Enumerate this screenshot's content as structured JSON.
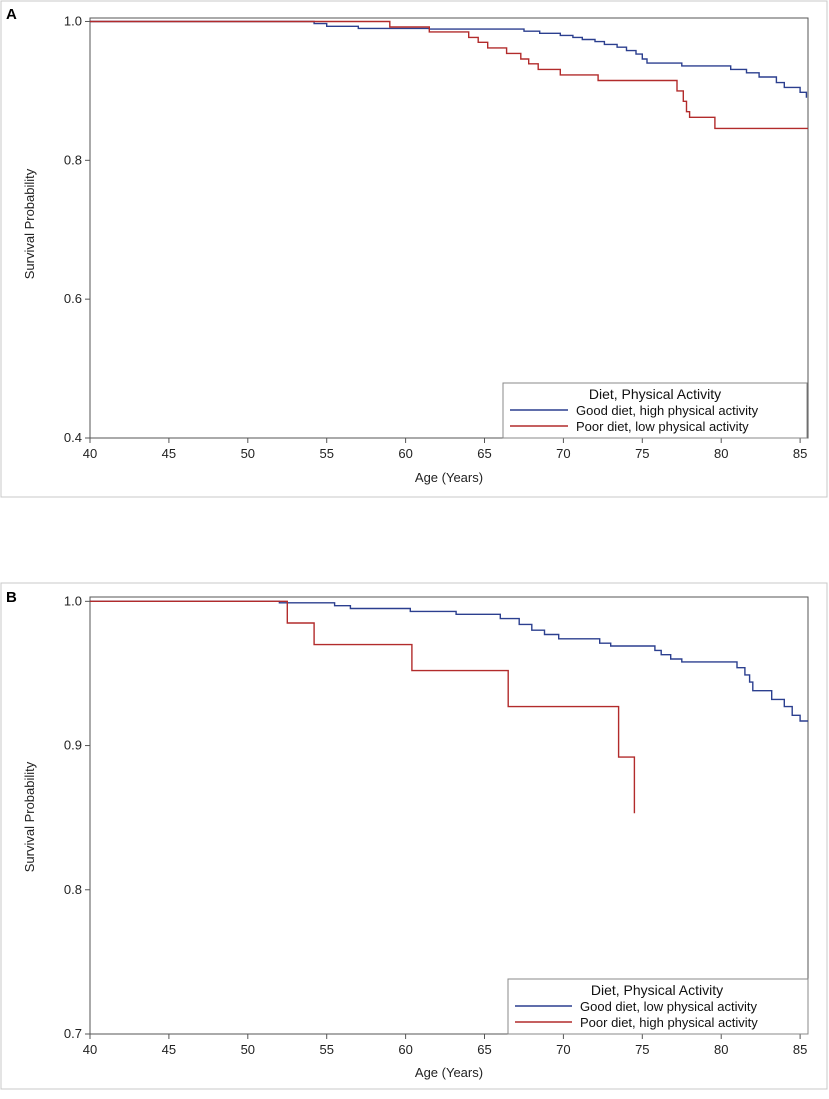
{
  "chart_data": [
    {
      "type": "line",
      "panel_label": "A",
      "xlabel": "Age (Years)",
      "ylabel": "Survival Probability",
      "xlim": [
        40,
        85.5
      ],
      "ylim": [
        0.4,
        1.005
      ],
      "xticks": [
        40,
        45,
        50,
        55,
        60,
        65,
        70,
        75,
        80,
        85
      ],
      "yticks": [
        0.4,
        0.6,
        0.8,
        1.0
      ],
      "ytick_labels": [
        "0.4",
        "0.6",
        "0.8",
        "1.0"
      ],
      "legend": {
        "title": "Diet, Physical Activity",
        "placement": "bottom-right"
      },
      "series": [
        {
          "name": "Good diet, high physical activity",
          "color": "#2b3f8f",
          "points": [
            [
              40,
              1.0
            ],
            [
              54.2,
              1.0
            ],
            [
              54.2,
              0.997
            ],
            [
              55.0,
              0.997
            ],
            [
              55.0,
              0.993
            ],
            [
              57.0,
              0.993
            ],
            [
              57.0,
              0.99
            ],
            [
              61.5,
              0.99
            ],
            [
              61.5,
              0.989
            ],
            [
              67.5,
              0.989
            ],
            [
              67.5,
              0.986
            ],
            [
              68.5,
              0.986
            ],
            [
              68.5,
              0.983
            ],
            [
              69.8,
              0.983
            ],
            [
              69.8,
              0.98
            ],
            [
              70.6,
              0.98
            ],
            [
              70.6,
              0.977
            ],
            [
              71.2,
              0.977
            ],
            [
              71.2,
              0.974
            ],
            [
              72.0,
              0.974
            ],
            [
              72.0,
              0.971
            ],
            [
              72.6,
              0.971
            ],
            [
              72.6,
              0.967
            ],
            [
              73.4,
              0.967
            ],
            [
              73.4,
              0.963
            ],
            [
              74.0,
              0.963
            ],
            [
              74.0,
              0.958
            ],
            [
              74.6,
              0.958
            ],
            [
              74.6,
              0.953
            ],
            [
              75.0,
              0.953
            ],
            [
              75.0,
              0.946
            ],
            [
              75.3,
              0.946
            ],
            [
              75.3,
              0.94
            ],
            [
              77.5,
              0.94
            ],
            [
              77.5,
              0.936
            ],
            [
              80.6,
              0.936
            ],
            [
              80.6,
              0.931
            ],
            [
              81.6,
              0.931
            ],
            [
              81.6,
              0.926
            ],
            [
              82.4,
              0.926
            ],
            [
              82.4,
              0.92
            ],
            [
              83.5,
              0.92
            ],
            [
              83.5,
              0.912
            ],
            [
              84.0,
              0.912
            ],
            [
              84.0,
              0.905
            ],
            [
              85.0,
              0.905
            ],
            [
              85.0,
              0.898
            ],
            [
              85.4,
              0.898
            ],
            [
              85.4,
              0.89
            ]
          ]
        },
        {
          "name": "Poor diet, low physical activity",
          "color": "#b22b2b",
          "points": [
            [
              40,
              1.0
            ],
            [
              59.0,
              1.0
            ],
            [
              59.0,
              0.992
            ],
            [
              61.5,
              0.992
            ],
            [
              61.5,
              0.985
            ],
            [
              64.0,
              0.985
            ],
            [
              64.0,
              0.977
            ],
            [
              64.6,
              0.977
            ],
            [
              64.6,
              0.97
            ],
            [
              65.2,
              0.97
            ],
            [
              65.2,
              0.962
            ],
            [
              66.4,
              0.962
            ],
            [
              66.4,
              0.954
            ],
            [
              67.3,
              0.954
            ],
            [
              67.3,
              0.946
            ],
            [
              67.8,
              0.946
            ],
            [
              67.8,
              0.939
            ],
            [
              68.4,
              0.939
            ],
            [
              68.4,
              0.931
            ],
            [
              69.8,
              0.931
            ],
            [
              69.8,
              0.923
            ],
            [
              72.2,
              0.923
            ],
            [
              72.2,
              0.915
            ],
            [
              77.2,
              0.915
            ],
            [
              77.2,
              0.9
            ],
            [
              77.6,
              0.9
            ],
            [
              77.6,
              0.885
            ],
            [
              77.8,
              0.885
            ],
            [
              77.8,
              0.87
            ],
            [
              78.0,
              0.87
            ],
            [
              78.0,
              0.862
            ],
            [
              79.6,
              0.862
            ],
            [
              79.6,
              0.846
            ],
            [
              85.5,
              0.846
            ]
          ]
        }
      ]
    },
    {
      "type": "line",
      "panel_label": "B",
      "xlabel": "Age (Years)",
      "ylabel": "Survival Probability",
      "xlim": [
        40,
        85.5
      ],
      "ylim": [
        0.7,
        1.003
      ],
      "xticks": [
        40,
        45,
        50,
        55,
        60,
        65,
        70,
        75,
        80,
        85
      ],
      "yticks": [
        0.7,
        0.8,
        0.9,
        1.0
      ],
      "ytick_labels": [
        "0.7",
        "0.8",
        "0.9",
        "1.0"
      ],
      "legend": {
        "title": "Diet, Physical Activity",
        "placement": "bottom-right"
      },
      "series": [
        {
          "name": "Good diet, low physical activity",
          "color": "#2b3f8f",
          "points": [
            [
              40,
              1.0
            ],
            [
              52.0,
              1.0
            ],
            [
              52.0,
              0.999
            ],
            [
              55.5,
              0.999
            ],
            [
              55.5,
              0.997
            ],
            [
              56.5,
              0.997
            ],
            [
              56.5,
              0.995
            ],
            [
              60.3,
              0.995
            ],
            [
              60.3,
              0.993
            ],
            [
              63.2,
              0.993
            ],
            [
              63.2,
              0.991
            ],
            [
              66.0,
              0.991
            ],
            [
              66.0,
              0.988
            ],
            [
              67.2,
              0.988
            ],
            [
              67.2,
              0.984
            ],
            [
              68.0,
              0.984
            ],
            [
              68.0,
              0.98
            ],
            [
              68.8,
              0.98
            ],
            [
              68.8,
              0.977
            ],
            [
              69.7,
              0.977
            ],
            [
              69.7,
              0.974
            ],
            [
              72.3,
              0.974
            ],
            [
              72.3,
              0.971
            ],
            [
              73.0,
              0.971
            ],
            [
              73.0,
              0.969
            ],
            [
              75.8,
              0.969
            ],
            [
              75.8,
              0.966
            ],
            [
              76.2,
              0.966
            ],
            [
              76.2,
              0.963
            ],
            [
              76.8,
              0.963
            ],
            [
              76.8,
              0.96
            ],
            [
              77.5,
              0.96
            ],
            [
              77.5,
              0.958
            ],
            [
              81.0,
              0.958
            ],
            [
              81.0,
              0.954
            ],
            [
              81.5,
              0.954
            ],
            [
              81.5,
              0.949
            ],
            [
              81.8,
              0.949
            ],
            [
              81.8,
              0.944
            ],
            [
              82.0,
              0.944
            ],
            [
              82.0,
              0.938
            ],
            [
              83.2,
              0.938
            ],
            [
              83.2,
              0.932
            ],
            [
              84.0,
              0.932
            ],
            [
              84.0,
              0.927
            ],
            [
              84.5,
              0.927
            ],
            [
              84.5,
              0.921
            ],
            [
              85.0,
              0.921
            ],
            [
              85.0,
              0.917
            ],
            [
              85.5,
              0.917
            ]
          ]
        },
        {
          "name": "Poor diet, high physical activity",
          "color": "#b22b2b",
          "points": [
            [
              40,
              1.0
            ],
            [
              52.5,
              1.0
            ],
            [
              52.5,
              0.985
            ],
            [
              54.2,
              0.985
            ],
            [
              54.2,
              0.97
            ],
            [
              60.4,
              0.97
            ],
            [
              60.4,
              0.952
            ],
            [
              66.5,
              0.952
            ],
            [
              66.5,
              0.927
            ],
            [
              73.5,
              0.927
            ],
            [
              73.5,
              0.892
            ],
            [
              74.5,
              0.892
            ],
            [
              74.5,
              0.853
            ]
          ]
        }
      ]
    }
  ]
}
